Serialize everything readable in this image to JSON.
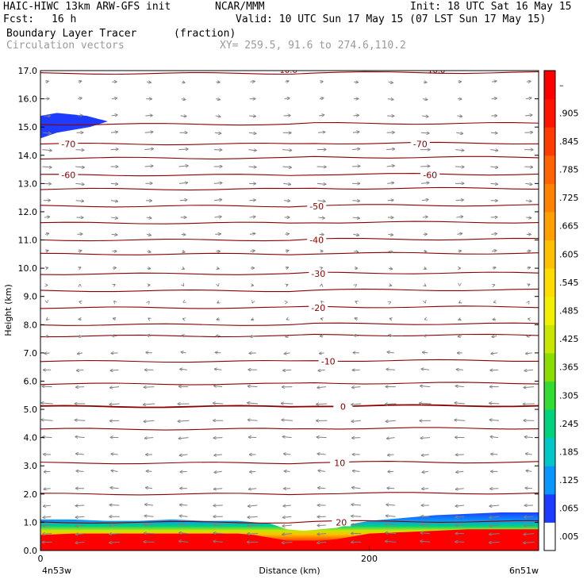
{
  "header": {
    "model_line": "HAIC-HIWC 13km ARW-GFS init",
    "org": "NCAR/MMM",
    "init": "Init: 18 UTC Sat 16 May 15",
    "fcst_label": "Fcst:",
    "fcst_value": "16 h",
    "valid": "Valid: 10 UTC Sun 17 May 15 (07 LST Sun 17 May 15)",
    "field_name": "Boundary Layer Tracer",
    "field_units": "(fraction)",
    "vector_label": "Circulation vectors",
    "xy_label": "XY= 259.5, 91.6 to 274.6,110.2"
  },
  "chart_data": {
    "type": "heatmap",
    "title": "Boundary Layer Tracer",
    "xlabel": "Distance (km)",
    "ylabel": "Height (km)",
    "xlim": [
      0,
      303
    ],
    "ylim": [
      0,
      17
    ],
    "x_ticks": [
      {
        "value": 0,
        "label": "0"
      },
      {
        "value": 200,
        "label": "200"
      }
    ],
    "x_end_labels": {
      "left": "4n53w",
      "right": "6n51w"
    },
    "y_ticks": [
      0.0,
      1.0,
      2.0,
      3.0,
      4.0,
      5.0,
      6.0,
      7.0,
      8.0,
      9.0,
      10.0,
      11.0,
      12.0,
      13.0,
      14.0,
      15.0,
      16.0,
      17.0
    ],
    "colorbar": {
      "labels": [
        ".005",
        ".065",
        ".125",
        ".185",
        ".245",
        ".305",
        ".365",
        ".425",
        ".485",
        ".545",
        ".605",
        ".665",
        ".725",
        ".785",
        ".845",
        ".905",
        "–"
      ],
      "colors": [
        "#ffffff",
        "#1e3cff",
        "#0a96ff",
        "#00c8c8",
        "#00d27d",
        "#32dc32",
        "#8cdc00",
        "#c8e600",
        "#f0f000",
        "#ffdc00",
        "#ffc000",
        "#ffa000",
        "#ff8200",
        "#ff6400",
        "#ff3c00",
        "#ff1400",
        "#ff0000"
      ]
    },
    "tracer_layer": {
      "x": [
        0,
        20,
        40,
        60,
        80,
        100,
        120,
        130,
        140,
        150,
        160,
        170,
        180,
        190,
        200,
        220,
        240,
        260,
        280,
        303
      ],
      "top_height": [
        1.1,
        1.1,
        1.05,
        1.05,
        1.1,
        1.05,
        1.05,
        1.0,
        0.95,
        0.75,
        0.7,
        0.75,
        0.8,
        0.95,
        1.05,
        1.15,
        1.25,
        1.3,
        1.35,
        1.35
      ],
      "full_height": [
        0.55,
        0.6,
        0.6,
        0.6,
        0.6,
        0.6,
        0.6,
        0.55,
        0.45,
        0.35,
        0.35,
        0.35,
        0.4,
        0.5,
        0.6,
        0.65,
        0.7,
        0.75,
        0.75,
        0.75
      ]
    },
    "upper_patch": {
      "x": [
        0,
        0,
        10,
        28,
        41,
        30,
        10,
        0
      ],
      "y": [
        14.6,
        15.4,
        15.5,
        15.4,
        15.2,
        15.0,
        14.8,
        14.6
      ]
    },
    "temperature_contours": [
      {
        "value": -70,
        "height": 14.4,
        "labels": [
          {
            "x": 17,
            "text": "-70"
          },
          {
            "x": 231,
            "text": "-70"
          }
        ]
      },
      {
        "value": -60,
        "height": 13.3,
        "labels": [
          {
            "x": 17,
            "text": "-60"
          },
          {
            "x": 237,
            "text": "-60"
          }
        ]
      },
      {
        "value": -50,
        "height": 12.2,
        "labels": [
          {
            "x": 168,
            "text": "-50"
          }
        ]
      },
      {
        "value": -40,
        "height": 11.0,
        "labels": [
          {
            "x": 168,
            "text": "-40"
          }
        ]
      },
      {
        "value": -30,
        "height": 9.8,
        "labels": [
          {
            "x": 169,
            "text": "-30"
          }
        ]
      },
      {
        "value": -20,
        "height": 8.6,
        "labels": [
          {
            "x": 169,
            "text": "-20"
          }
        ]
      },
      {
        "value": -10,
        "height": 6.7,
        "labels": [
          {
            "x": 175,
            "text": "-10"
          }
        ]
      },
      {
        "value": 0,
        "height": 5.1,
        "labels": [
          {
            "x": 184,
            "text": "0"
          }
        ]
      },
      {
        "value": 10,
        "height": 3.1,
        "labels": [
          {
            "x": 182,
            "text": "10"
          }
        ]
      },
      {
        "value": 20,
        "height": 1.0,
        "labels": [
          {
            "x": 183,
            "text": "20"
          }
        ]
      }
    ],
    "extra_contour_heights": [
      15.1,
      13.9,
      12.8,
      11.6,
      10.5,
      9.2,
      8.0,
      7.6,
      5.9,
      4.3,
      2.0,
      16.9
    ],
    "top_labels": [
      {
        "x": 150,
        "text": "-10.0"
      },
      {
        "x": 240,
        "text": "-10.0"
      }
    ],
    "vectors": {
      "columns_km": [
        4,
        24,
        45,
        66,
        87,
        108,
        129,
        150,
        171,
        192,
        213,
        234,
        255,
        276,
        297
      ],
      "levels_km": [
        16.6,
        16.0,
        15.4,
        14.8,
        14.2,
        13.6,
        13.0,
        12.4,
        11.8,
        11.2,
        10.6,
        10.0,
        9.4,
        8.8,
        8.2,
        7.6,
        7.0,
        6.4,
        5.8,
        5.2,
        4.6,
        4.0,
        3.4,
        2.8,
        2.2,
        1.6,
        1.2,
        0.9,
        0.6,
        0.3
      ],
      "u_profile": [
        {
          "height": 0.3,
          "u": -8
        },
        {
          "height": 1.5,
          "u": -7
        },
        {
          "height": 3.0,
          "u": -5
        },
        {
          "height": 5.0,
          "u": -9
        },
        {
          "height": 6.5,
          "u": -6
        },
        {
          "height": 8.0,
          "u": -2
        },
        {
          "height": 10.0,
          "u": 2
        },
        {
          "height": 12.0,
          "u": 5
        },
        {
          "height": 14.0,
          "u": 7
        },
        {
          "height": 16.5,
          "u": 3
        }
      ]
    }
  }
}
